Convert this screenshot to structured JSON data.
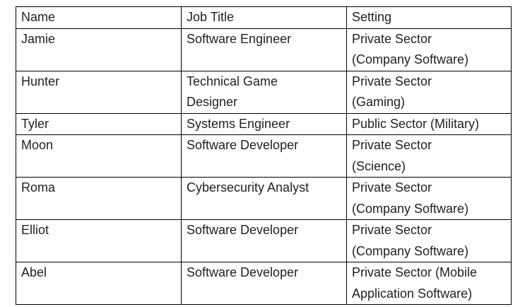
{
  "table": {
    "headers": [
      "Name",
      "Job Title",
      "Setting"
    ],
    "rows": [
      {
        "name": "Jamie",
        "job_title": "Software Engineer",
        "setting_1": "Private Sector",
        "setting_2": "(Company Software)"
      },
      {
        "name": "Hunter",
        "job_title_1": "Technical Game",
        "job_title_2": "Designer",
        "setting_1": "Private Sector",
        "setting_2": "(Gaming)"
      },
      {
        "name": "Tyler",
        "job_title": "Systems Engineer",
        "setting_1": "Public Sector (Military)"
      },
      {
        "name": "Moon",
        "job_title": "Software Developer",
        "setting_1": "Private Sector",
        "setting_2": "(Science)"
      },
      {
        "name": "Roma",
        "job_title": "Cybersecurity Analyst",
        "setting_1": "Private Sector",
        "setting_2": "(Company Software)"
      },
      {
        "name": "Elliot",
        "job_title": "Software Developer",
        "setting_1": "Private Sector",
        "setting_2": "(Company Software)"
      },
      {
        "name": "Abel",
        "job_title": "Software Developer",
        "setting_1": "Private Sector (Mobile",
        "setting_2": "Application Software)"
      }
    ]
  }
}
